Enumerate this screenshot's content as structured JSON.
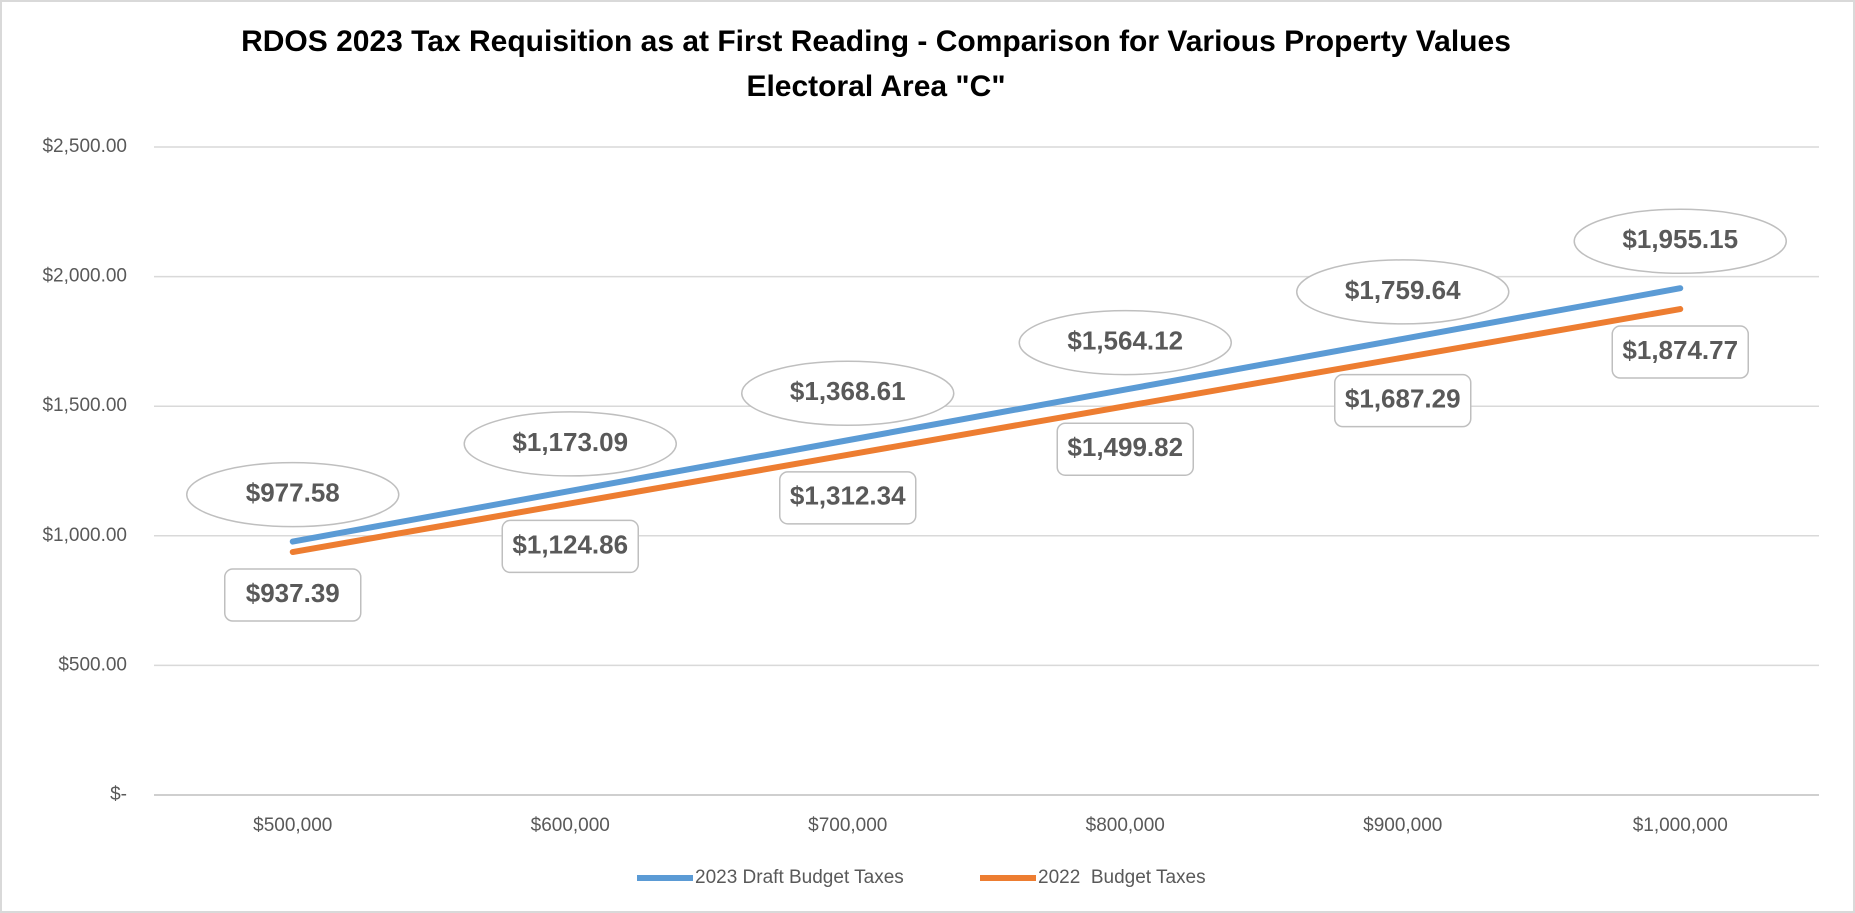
{
  "chart_data": {
    "type": "line",
    "title": [
      "RDOS 2023 Tax Requisition as at First Reading - Comparison for Various Property Values",
      "Electoral Area \"C\""
    ],
    "categories": [
      "$500,000",
      "$600,000",
      "$700,000",
      "$800,000",
      "$900,000",
      "$1,000,000"
    ],
    "series": [
      {
        "name": "2023 Draft Budget Taxes",
        "color": "#5b9bd5",
        "values": [
          977.58,
          1173.09,
          1368.61,
          1564.12,
          1759.64,
          1955.15
        ],
        "value_labels": [
          "$977.58",
          "$1,173.09",
          "$1,368.61",
          "$1,564.12",
          "$1,759.64",
          "$1,955.15"
        ]
      },
      {
        "name": "2022  Budget Taxes",
        "color": "#ed7d31",
        "values": [
          937.39,
          1124.86,
          1312.34,
          1499.82,
          1687.29,
          1874.77
        ],
        "value_labels": [
          "$937.39",
          "$1,124.86",
          "$1,312.34",
          "$1,499.82",
          "$1,687.29",
          "$1,874.77"
        ]
      }
    ],
    "ylim": [
      0,
      2500
    ],
    "yticks": [
      {
        "value": 0,
        "label": "$-"
      },
      {
        "value": 500,
        "label": "$500.00"
      },
      {
        "value": 1000,
        "label": "$1,000.00"
      },
      {
        "value": 1500,
        "label": "$1,500.00"
      },
      {
        "value": 2000,
        "label": "$2,000.00"
      },
      {
        "value": 2500,
        "label": "$2,500.00"
      }
    ],
    "grid": true,
    "legend": "bottom"
  }
}
